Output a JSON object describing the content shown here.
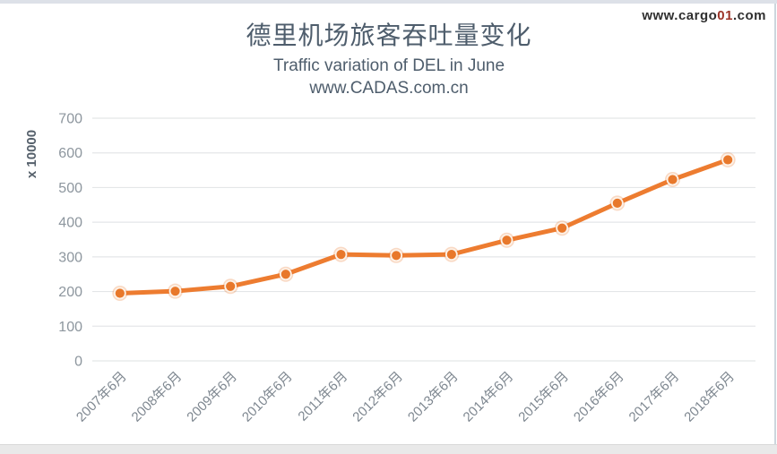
{
  "watermark": {
    "prefix": "www.cargo",
    "highlight": "01",
    "suffix": ".com"
  },
  "header": {
    "title": "德里机场旅客吞吐量变化",
    "subtitle": "Traffic variation of DEL in June",
    "site": "www.CADAS.com.cn"
  },
  "chart_data": {
    "type": "line",
    "title": "德里机场旅客吞吐量变化 (Traffic variation of DEL in June)",
    "categories": [
      "2007年6月",
      "2008年6月",
      "2009年6月",
      "2010年6月",
      "2011年6月",
      "2012年6月",
      "2013年6月",
      "2014年6月",
      "2015年6月",
      "2016年6月",
      "2017年6月",
      "2018年6月"
    ],
    "values": [
      195,
      201,
      215,
      250,
      307,
      304,
      307,
      348,
      383,
      455,
      523,
      580
    ],
    "xlabel": "",
    "ylabel": "x 10000",
    "ylim": [
      0,
      700
    ],
    "ytick_step": 100,
    "yticks": [
      0,
      100,
      200,
      300,
      400,
      500,
      600,
      700
    ],
    "grid": true,
    "legend": "none",
    "line_color": "#ED7C30",
    "marker_color": "#E8782B"
  },
  "colors": {
    "accent_orange": "#ED7C30",
    "title_text": "#4E5D6C",
    "axis_tick_text": "#8D969E",
    "axis_title_text": "#55606B",
    "gridline": "#E4E6E8",
    "watermark_dark": "#2F2F2F",
    "watermark_red": "#9C3428",
    "page_edge": "#DDE1E8"
  }
}
